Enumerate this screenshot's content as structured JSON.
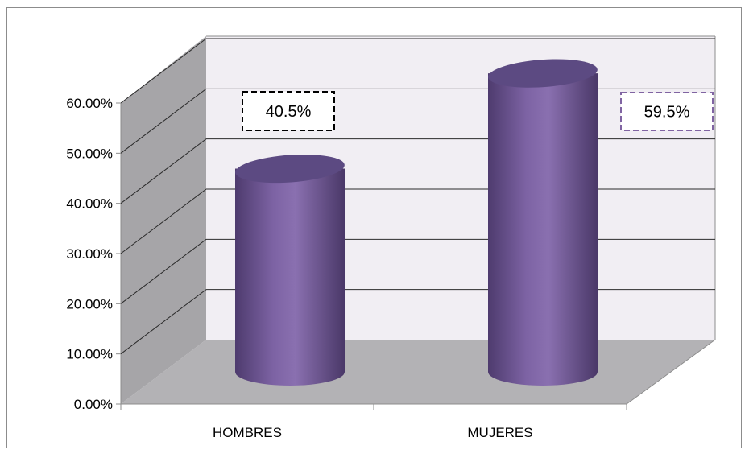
{
  "chart_data": {
    "type": "bar",
    "style": "3d-cylinder",
    "categories": [
      "HOMBRES",
      "MUJERES"
    ],
    "values": [
      40.5,
      59.5
    ],
    "data_labels": [
      "40.5%",
      "59.5%"
    ],
    "ylim": [
      0,
      60
    ],
    "yticks": [
      "0.00%",
      "10.00%",
      "20.00%",
      "30.00%",
      "40.00%",
      "50.00%",
      "60.00%"
    ],
    "grid": true,
    "legend": "none",
    "colors": {
      "bar": "#8064a2",
      "bar_dark": "#5e4780",
      "bar_top": "#5c4a82",
      "wall": "#f1eef3",
      "side_wall": "#a6a5a8",
      "floor": "#b3b2b5",
      "gridline": "#2b2b2b",
      "label1_border": "#000000",
      "label2_border": "#8064a2"
    }
  }
}
